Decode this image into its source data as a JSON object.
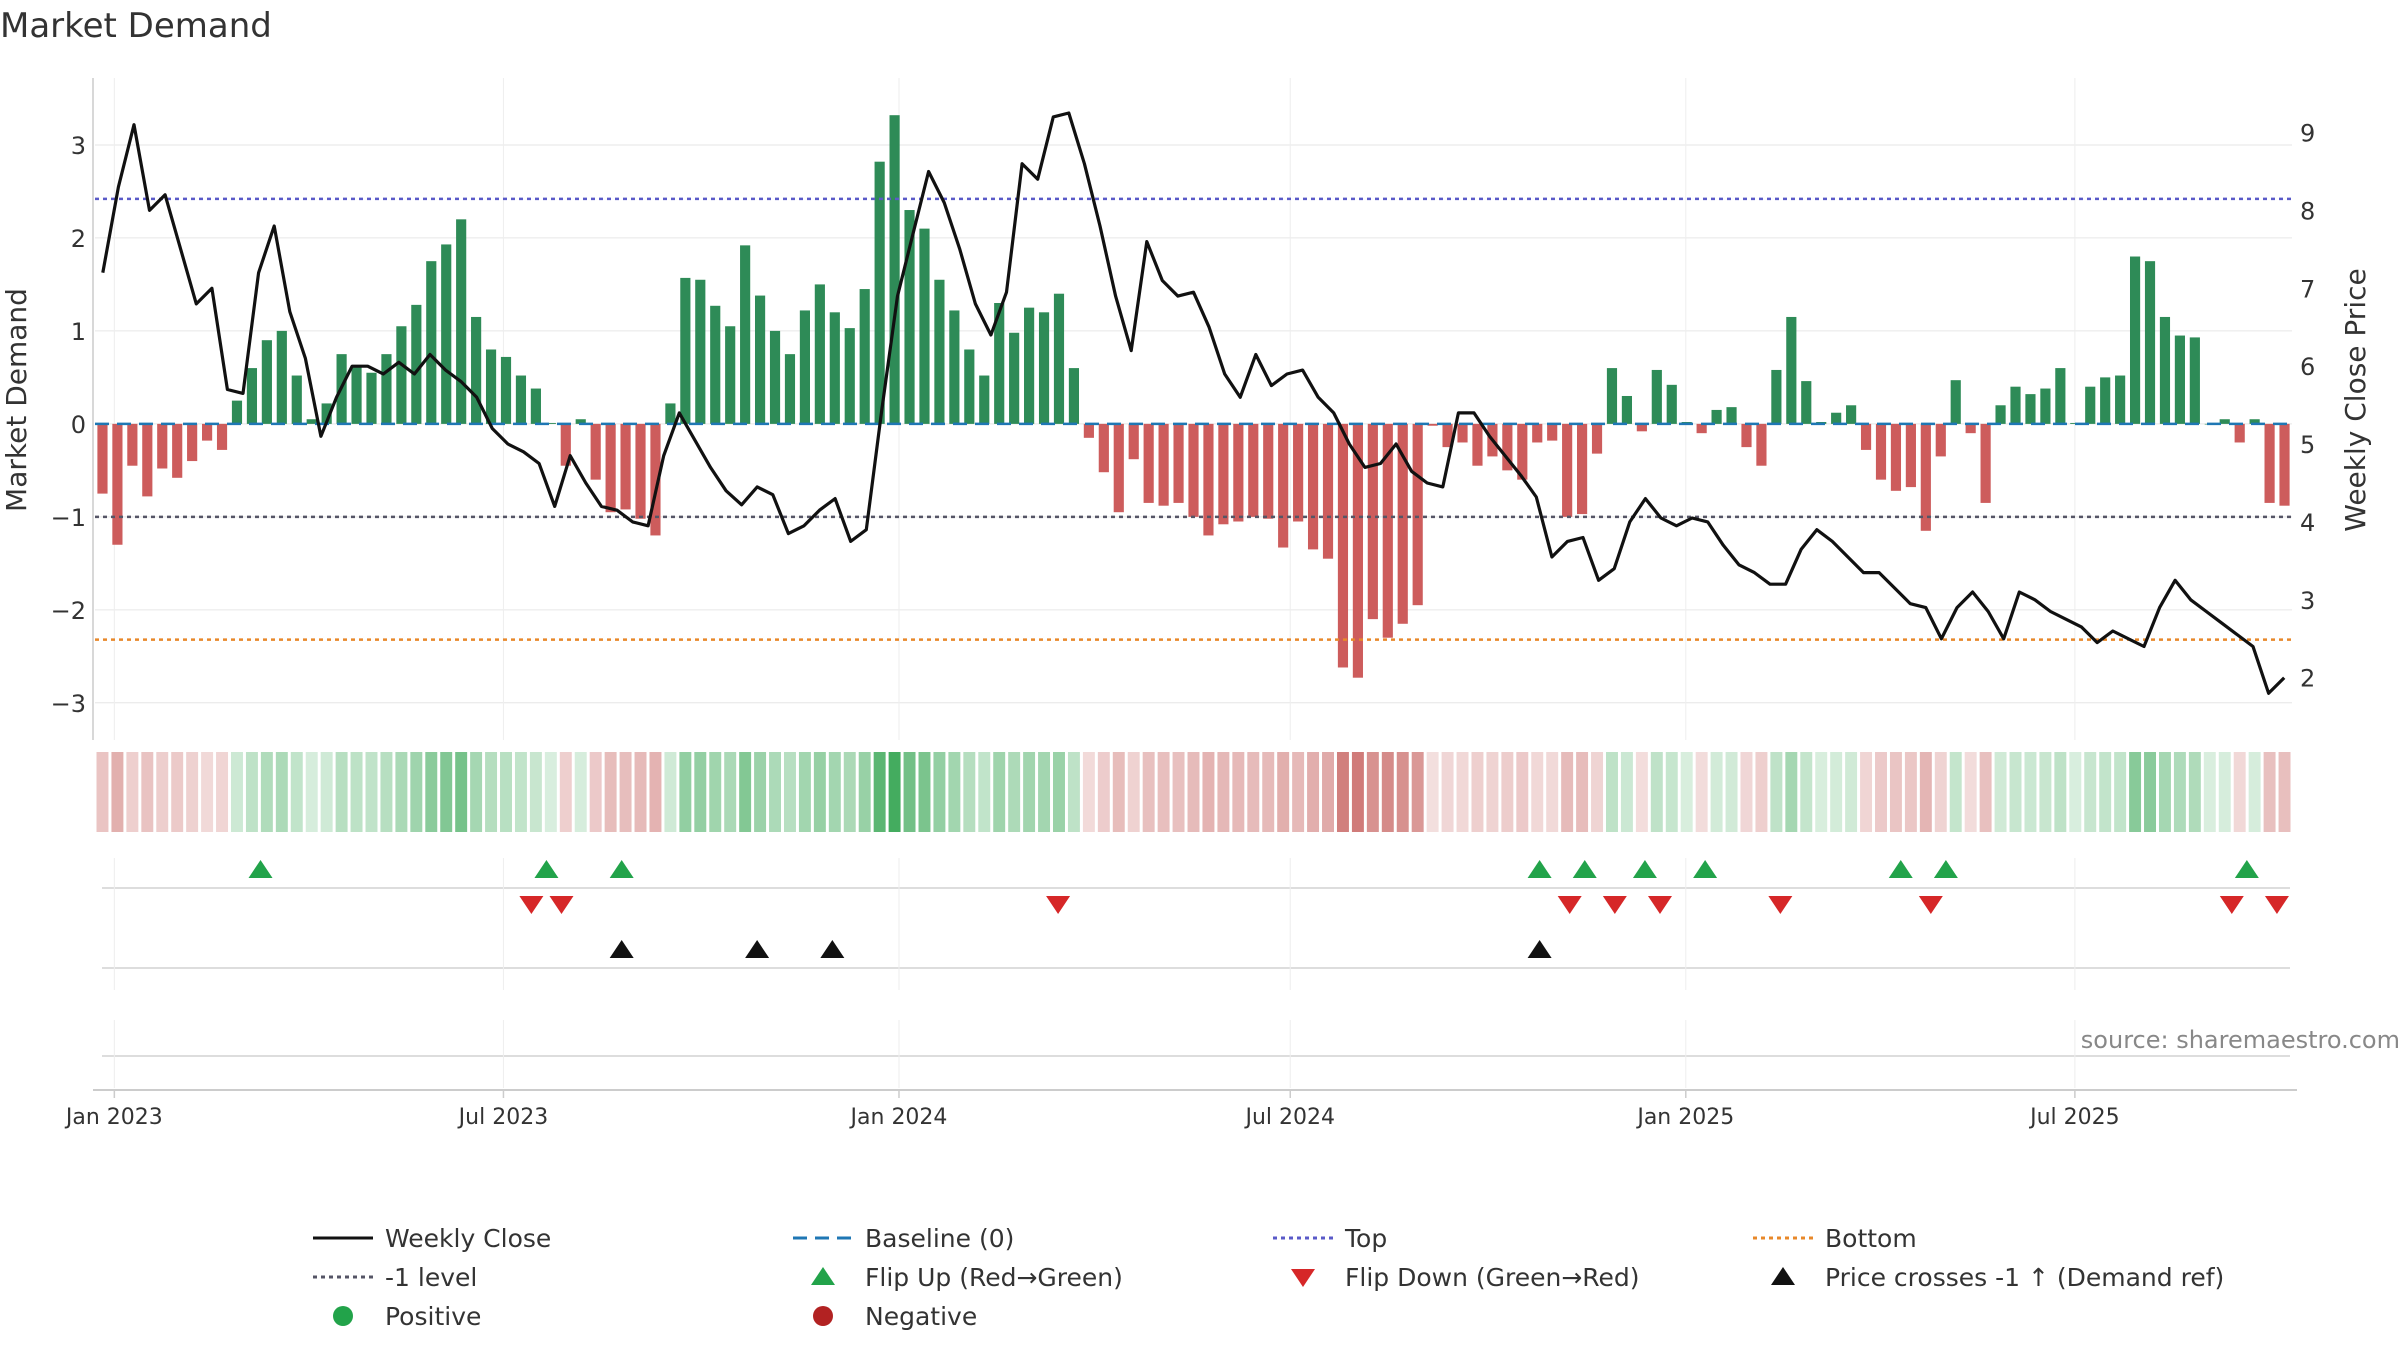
{
  "chart_data": {
    "type": "bar",
    "title": "Market Demand",
    "ylabel": "Market Demand",
    "y2label": "Weekly Close Price",
    "ylim": [
      -3.4,
      3.72
    ],
    "y2lim": [
      1.2,
      9.7
    ],
    "yticks": [
      3,
      2,
      1,
      0,
      -1,
      -2,
      -3
    ],
    "ytick_labels": [
      "3",
      "2",
      "1",
      "0",
      "−1",
      "−2",
      "−3"
    ],
    "y2ticks": [
      9,
      8,
      7,
      6,
      5,
      4,
      3,
      2
    ],
    "y2tick_labels": [
      "9",
      "8",
      "7",
      "6",
      "5",
      "4",
      "3",
      "2"
    ],
    "date_range": [
      "2022-12-23",
      "2025-10-10"
    ],
    "xticks": [
      {
        "label": "Jan 2023",
        "date": "2023-01-01"
      },
      {
        "label": "Jul 2023",
        "date": "2023-07-01"
      },
      {
        "label": "Jan 2024",
        "date": "2024-01-01"
      },
      {
        "label": "Jul 2024",
        "date": "2024-07-01"
      },
      {
        "label": "Jan 2025",
        "date": "2025-01-01"
      },
      {
        "label": "Jul 2025",
        "date": "2025-07-01"
      }
    ],
    "reference_lines": {
      "baseline": 0,
      "top": 2.42,
      "minus_one": -1,
      "bottom": -2.32
    },
    "series": [
      {
        "name": "Market Demand",
        "type": "bar",
        "values": [
          -0.75,
          -1.3,
          -0.45,
          -0.78,
          -0.48,
          -0.58,
          -0.4,
          -0.18,
          -0.28,
          0.25,
          0.6,
          0.9,
          1.0,
          0.52,
          0.05,
          0.22,
          0.75,
          0.62,
          0.55,
          0.75,
          1.05,
          1.28,
          1.75,
          1.93,
          2.2,
          1.15,
          0.8,
          0.72,
          0.52,
          0.38,
          0.01,
          -0.45,
          0.05,
          -0.6,
          -0.95,
          -0.92,
          -1.02,
          -1.2,
          0.22,
          1.57,
          1.55,
          1.27,
          1.05,
          1.92,
          1.38,
          1.0,
          0.75,
          1.22,
          1.5,
          1.2,
          1.03,
          1.45,
          2.82,
          3.32,
          2.3,
          2.1,
          1.55,
          1.22,
          0.8,
          0.52,
          1.3,
          0.98,
          1.25,
          1.2,
          1.4,
          0.6,
          -0.15,
          -0.52,
          -0.95,
          -0.38,
          -0.85,
          -0.88,
          -0.85,
          -1.0,
          -1.2,
          -1.08,
          -1.05,
          -1.0,
          -1.02,
          -1.33,
          -1.05,
          -1.35,
          -1.45,
          -2.62,
          -2.73,
          -2.1,
          -2.3,
          -2.15,
          -1.95,
          -0.02,
          -0.25,
          -0.2,
          -0.45,
          -0.35,
          -0.5,
          -0.6,
          -0.2,
          -0.18,
          -1.0,
          -0.97,
          -0.32,
          0.6,
          0.3,
          -0.08,
          0.58,
          0.42,
          0.02,
          -0.1,
          0.15,
          0.18,
          -0.25,
          -0.45,
          0.58,
          1.15,
          0.46,
          0.02,
          0.12,
          0.2,
          -0.28,
          -0.6,
          -0.72,
          -0.68,
          -1.15,
          -0.35,
          0.47,
          -0.1,
          -0.85,
          0.2,
          0.4,
          0.32,
          0.38,
          0.6,
          0.01,
          0.4,
          0.5,
          0.52,
          1.8,
          1.75,
          1.15,
          0.95,
          0.93,
          0.0,
          0.05,
          -0.2,
          0.05,
          -0.85,
          -0.88
        ]
      },
      {
        "name": "Weekly Close",
        "type": "line",
        "axis": "y2",
        "values": [
          7.2,
          8.3,
          9.1,
          8.0,
          8.2,
          7.5,
          6.8,
          7.0,
          5.7,
          5.65,
          7.2,
          7.8,
          6.7,
          6.1,
          5.1,
          5.6,
          6.0,
          6.0,
          5.9,
          6.05,
          5.9,
          6.15,
          5.95,
          5.8,
          5.6,
          5.2,
          5.0,
          4.9,
          4.75,
          4.2,
          4.85,
          4.5,
          4.2,
          4.15,
          4.0,
          3.95,
          4.85,
          5.4,
          5.05,
          4.7,
          4.4,
          4.22,
          4.45,
          4.35,
          3.85,
          3.95,
          4.15,
          4.3,
          3.75,
          3.9,
          5.45,
          6.9,
          7.7,
          8.5,
          8.1,
          7.5,
          6.8,
          6.4,
          6.95,
          8.6,
          8.4,
          9.2,
          9.25,
          8.6,
          7.8,
          6.9,
          6.2,
          7.6,
          7.1,
          6.9,
          6.95,
          6.5,
          5.9,
          5.6,
          6.15,
          5.75,
          5.9,
          5.95,
          5.6,
          5.4,
          5.0,
          4.7,
          4.75,
          5.0,
          4.65,
          4.5,
          4.45,
          5.4,
          5.4,
          5.1,
          4.85,
          4.6,
          4.32,
          3.55,
          3.75,
          3.8,
          3.25,
          3.4,
          4.0,
          4.3,
          4.05,
          3.95,
          4.05,
          4.0,
          3.7,
          3.45,
          3.35,
          3.2,
          3.2,
          3.65,
          3.9,
          3.75,
          3.55,
          3.35,
          3.35,
          3.15,
          2.95,
          2.9,
          2.5,
          2.9,
          3.1,
          2.85,
          2.5,
          3.1,
          3.0,
          2.85,
          2.75,
          2.65,
          2.45,
          2.6,
          2.5,
          2.4,
          2.9,
          3.25,
          3.0,
          2.85,
          2.7,
          2.55,
          2.4,
          1.8,
          2.0
        ]
      }
    ],
    "markers": {
      "flip_up": [
        "2023-03-10",
        "2023-07-21",
        "2023-08-25",
        "2024-10-25",
        "2024-11-15",
        "2024-12-13",
        "2025-01-10",
        "2025-04-11",
        "2025-05-02",
        "2025-09-19"
      ],
      "flip_down": [
        "2023-07-14",
        "2023-07-28",
        "2024-03-15",
        "2024-11-08",
        "2024-11-29",
        "2024-12-20",
        "2025-02-14",
        "2025-04-25",
        "2025-09-12",
        "2025-10-03"
      ],
      "price_cross_minus1": [
        "2023-08-25",
        "2023-10-27",
        "2023-12-01",
        "2024-10-25"
      ]
    },
    "source": "source: sharemaestro.com",
    "legend_position": "bottom",
    "legend": [
      {
        "label": "Weekly Close",
        "kind": "line-solid",
        "color": "#111111"
      },
      {
        "label": "Baseline (0)",
        "kind": "line-dash",
        "color": "#1f77b4"
      },
      {
        "label": "Top",
        "kind": "line-dot",
        "color": "#5a5ac8"
      },
      {
        "label": "Bottom",
        "kind": "line-dot",
        "color": "#e8882a"
      },
      {
        "label": "-1 level",
        "kind": "line-dot",
        "color": "#555566"
      },
      {
        "label": "Flip Up (Red→Green)",
        "kind": "tri-up",
        "color": "#22a34a"
      },
      {
        "label": "Flip Down (Green→Red)",
        "kind": "tri-down",
        "color": "#d62728"
      },
      {
        "label": "Price crosses -1 ↑ (Demand ref)",
        "kind": "tri-up",
        "color": "#111111"
      },
      {
        "label": "Positive",
        "kind": "dot",
        "color": "#22a34a"
      },
      {
        "label": "Negative",
        "kind": "dot",
        "color": "#b22222"
      }
    ]
  },
  "colors": {
    "positive_bar": "#2e8b57",
    "negative_bar": "#cd5c5c",
    "price_line": "#111111",
    "baseline": "#1f77b4",
    "top": "#5a5ac8",
    "bottom": "#e8882a",
    "minus_one": "#555566",
    "flip_up": "#22a34a",
    "flip_down": "#d62728",
    "cross": "#111111",
    "grid": "#e6e6e6",
    "axis": "#cccccc",
    "text": "#333333",
    "source": "#888888"
  }
}
